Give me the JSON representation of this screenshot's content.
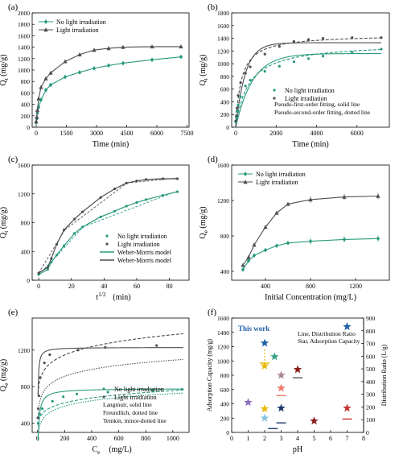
{
  "figure": {
    "colors": {
      "teal": "#2a9a7e",
      "gray": "#4d4d55",
      "axis": "#000000",
      "blue": "#1f5fa8",
      "gold": "#e6b800",
      "salmon": "#f07868",
      "mauve": "#a8888a",
      "navy": "#1e3a6e",
      "darkred": "#8b1a1a",
      "purple": "#8a6dc2",
      "lightblue": "#88c0e0",
      "green": "#3aa088",
      "crimson": "#c83030",
      "darkgray": "#555555"
    }
  },
  "chart_data": [
    {
      "panel": "(a)",
      "type": "line",
      "xlabel": "Time (min)",
      "ylabel": "Q_t (mg/g)",
      "xlim": [
        -200,
        7600
      ],
      "ylim": [
        0,
        2000
      ],
      "xticks": [
        0,
        1500,
        3000,
        4500,
        6000,
        7500
      ],
      "yticks": [
        0,
        200,
        400,
        600,
        800,
        1000,
        1200,
        1400,
        1600,
        1800,
        2000
      ],
      "legend_position": "top-left",
      "series": [
        {
          "name": "No light irradiation",
          "color": "teal",
          "marker": "diamond",
          "x": [
            0,
            30,
            60,
            120,
            240,
            480,
            720,
            1440,
            2160,
            2880,
            3600,
            4320,
            5760,
            7200
          ],
          "y": [
            80,
            150,
            250,
            350,
            480,
            650,
            740,
            880,
            960,
            1030,
            1080,
            1120,
            1180,
            1230
          ]
        },
        {
          "name": "Light irradiation",
          "color": "gray",
          "marker": "triangle",
          "x": [
            0,
            30,
            60,
            120,
            240,
            480,
            720,
            1440,
            2160,
            2880,
            3600,
            4320,
            5760,
            7200
          ],
          "y": [
            100,
            180,
            300,
            500,
            700,
            850,
            950,
            1150,
            1270,
            1350,
            1380,
            1400,
            1410,
            1410
          ]
        }
      ]
    },
    {
      "panel": "(b)",
      "type": "scatter",
      "xlabel": "Time (min)",
      "ylabel": "Q_t (mg/g)",
      "xlim": [
        -200,
        7600
      ],
      "ylim": [
        0,
        1800
      ],
      "xticks": [
        0,
        2000,
        4000,
        6000
      ],
      "yticks": [
        0,
        200,
        400,
        600,
        800,
        1000,
        1200,
        1400,
        1600,
        1800
      ],
      "legend_position": "bottom-right",
      "annotations": [
        "Pseudo-first-order fitting, solid line",
        "Pseudo-second-order fitting, dotted line"
      ],
      "series": [
        {
          "name": "No light irradiation",
          "color": "teal",
          "marker": "circle",
          "x": [
            0,
            30,
            60,
            120,
            240,
            480,
            720,
            1440,
            2160,
            2880,
            3600,
            4320,
            5760,
            7200
          ],
          "y": [
            80,
            150,
            250,
            350,
            480,
            650,
            740,
            880,
            960,
            1030,
            1080,
            1120,
            1180,
            1230
          ]
        },
        {
          "name": "Light irradiation",
          "color": "gray",
          "marker": "circle",
          "x": [
            0,
            30,
            60,
            120,
            240,
            480,
            720,
            1440,
            2160,
            2880,
            3600,
            4320,
            5760,
            7200
          ],
          "y": [
            100,
            180,
            300,
            500,
            700,
            850,
            950,
            1150,
            1270,
            1350,
            1380,
            1400,
            1410,
            1410
          ]
        }
      ],
      "fits": [
        {
          "color": "teal",
          "style": "solid",
          "qe": 1160,
          "k": 0.0012,
          "model": "pfo"
        },
        {
          "color": "teal",
          "style": "dashed",
          "qe": 1330,
          "k": 1.2e-06,
          "model": "pso"
        },
        {
          "color": "gray",
          "style": "solid",
          "qe": 1330,
          "k": 0.0021,
          "model": "pfo"
        },
        {
          "color": "gray",
          "style": "dashed",
          "qe": 1460,
          "k": 2.5e-06,
          "model": "pso"
        }
      ]
    },
    {
      "panel": "(c)",
      "type": "scatter",
      "xlabel": "t^{1/2} (min)",
      "ylabel": "Q_t (mg/g)",
      "xlim": [
        -4,
        92
      ],
      "ylim": [
        0,
        1600
      ],
      "xticks": [
        0,
        20,
        40,
        60,
        80
      ],
      "yticks": [
        0,
        400,
        800,
        1200,
        1600
      ],
      "legend_position": "bottom-right",
      "series": [
        {
          "name": "No light irradiation",
          "color": "teal",
          "marker": "circle",
          "x": [
            0,
            5.5,
            7.7,
            11,
            15.5,
            21.9,
            26.8,
            37.9,
            46.5,
            53.7,
            60,
            65.7,
            75.9,
            84.9
          ],
          "y": [
            80,
            150,
            250,
            350,
            480,
            650,
            740,
            880,
            960,
            1030,
            1080,
            1120,
            1180,
            1230
          ]
        },
        {
          "name": "Light irradiation",
          "color": "gray",
          "marker": "circle",
          "x": [
            0,
            5.5,
            7.7,
            11,
            15.5,
            21.9,
            26.8,
            37.9,
            46.5,
            53.7,
            60,
            65.7,
            75.9,
            84.9
          ],
          "y": [
            100,
            180,
            300,
            500,
            700,
            850,
            950,
            1150,
            1270,
            1350,
            1380,
            1400,
            1410,
            1410
          ]
        }
      ],
      "fits": [
        {
          "name": "Weber-Morris model",
          "color": "teal",
          "segments": [
            [
              [
                0,
                80
              ],
              [
                12,
                360
              ]
            ],
            [
              [
                12,
                360
              ],
              [
                27,
                740
              ]
            ],
            [
              [
                27,
                740
              ],
              [
                85,
                1240
              ]
            ]
          ]
        },
        {
          "name": "Weber-Morris model",
          "color": "gray",
          "segments": [
            [
              [
                0,
                100
              ],
              [
                16,
                700
              ]
            ],
            [
              [
                16,
                700
              ],
              [
                54,
                1350
              ]
            ],
            [
              [
                54,
                1350
              ],
              [
                85,
                1420
              ]
            ]
          ]
        }
      ]
    },
    {
      "panel": "(d)",
      "type": "line",
      "xlabel": "Initial Concentration (mg/L)",
      "ylabel": "Q_e (mg/g)",
      "xlim": [
        100,
        1500
      ],
      "ylim": [
        300,
        1600
      ],
      "xticks": [
        400,
        800,
        1200
      ],
      "yticks": [
        400,
        800,
        1200,
        1600
      ],
      "legend_position": "top-left",
      "series": [
        {
          "name": "No light irradiation",
          "color": "teal",
          "marker": "diamond",
          "x": [
            200,
            250,
            300,
            400,
            500,
            600,
            800,
            1100,
            1400
          ],
          "y": [
            420,
            520,
            580,
            640,
            690,
            720,
            740,
            760,
            770
          ]
        },
        {
          "name": "Light irradiation",
          "color": "gray",
          "marker": "triangle",
          "x": [
            200,
            250,
            300,
            400,
            500,
            600,
            800,
            1100,
            1400
          ],
          "y": [
            470,
            560,
            700,
            900,
            1060,
            1160,
            1210,
            1240,
            1250
          ]
        }
      ]
    },
    {
      "panel": "(e)",
      "type": "scatter",
      "xlabel": "C_e (mg/L)",
      "ylabel": "Q_e (mg/g)",
      "xlim": [
        -40,
        1120
      ],
      "ylim": [
        300,
        1550
      ],
      "xticks": [
        0,
        200,
        400,
        600,
        800,
        1000
      ],
      "yticks": [
        400,
        800,
        1200
      ],
      "legend_position": "bottom-right",
      "annotations": [
        "Langmuir, solid line",
        "Freundlich, dotted line",
        "Temkin, minor-dotted line"
      ],
      "series": [
        {
          "name": "No light irradiation",
          "color": "teal",
          "marker": "circle",
          "x": [
            5,
            15,
            35,
            110,
            190,
            290,
            520,
            850,
            1070
          ],
          "y": [
            400,
            500,
            560,
            640,
            690,
            720,
            740,
            760,
            770
          ]
        },
        {
          "name": "Light irradiation",
          "color": "gray",
          "marker": "circle",
          "x": [
            2,
            5,
            10,
            20,
            50,
            90,
            300,
            500,
            880
          ],
          "y": [
            460,
            560,
            700,
            900,
            1060,
            1150,
            1200,
            1230,
            1250
          ]
        }
      ]
    },
    {
      "panel": "(f)",
      "type": "scatter",
      "xlabel": "pH",
      "ylabel": "Adsorption Capacity (mg/g)",
      "y2label": "Distribution Ratio (L/g)",
      "xlim": [
        0,
        8
      ],
      "ylim": [
        0,
        1600
      ],
      "y2lim": [
        0,
        900
      ],
      "xticks": [
        0,
        1,
        2,
        3,
        4,
        5,
        6,
        7,
        8
      ],
      "yticks": [
        0,
        200,
        400,
        600,
        800,
        1000,
        1200,
        1400,
        1600
      ],
      "y2ticks": [
        0,
        100,
        200,
        300,
        400,
        500,
        600,
        700,
        800,
        900
      ],
      "annotations": [
        "This work",
        "Line, Distribution Ratio",
        "Star, Adsorption Capacity"
      ],
      "stars": [
        {
          "x": 1.0,
          "y": 420,
          "color": "purple"
        },
        {
          "x": 2.0,
          "y": 1250,
          "color": "blue"
        },
        {
          "x": 2.0,
          "y": 930,
          "color": "gold"
        },
        {
          "x": 2.0,
          "y": 330,
          "color": "gold"
        },
        {
          "x": 2.0,
          "y": 200,
          "color": "lightblue"
        },
        {
          "x": 2.6,
          "y": 1060,
          "color": "green"
        },
        {
          "x": 3.0,
          "y": 800,
          "color": "mauve"
        },
        {
          "x": 3.0,
          "y": 620,
          "color": "salmon"
        },
        {
          "x": 3.0,
          "y": 340,
          "color": "navy"
        },
        {
          "x": 4.0,
          "y": 880,
          "color": "darkred"
        },
        {
          "x": 5.0,
          "y": 160,
          "color": "darkred"
        },
        {
          "x": 7.0,
          "y": 1480,
          "color": "blue"
        },
        {
          "x": 7.0,
          "y": 340,
          "color": "crimson"
        }
      ],
      "lines": [
        {
          "x": 2.0,
          "y2": 545,
          "color": "gold"
        },
        {
          "x": 2.5,
          "y2": 30,
          "color": "navy"
        },
        {
          "x": 3.0,
          "y2": 75,
          "color": "navy"
        },
        {
          "x": 3.0,
          "y2": 290,
          "color": "salmon"
        },
        {
          "x": 4.0,
          "y2": 430,
          "color": "darkgray"
        },
        {
          "x": 7.0,
          "y2": 105,
          "color": "crimson"
        }
      ]
    }
  ]
}
